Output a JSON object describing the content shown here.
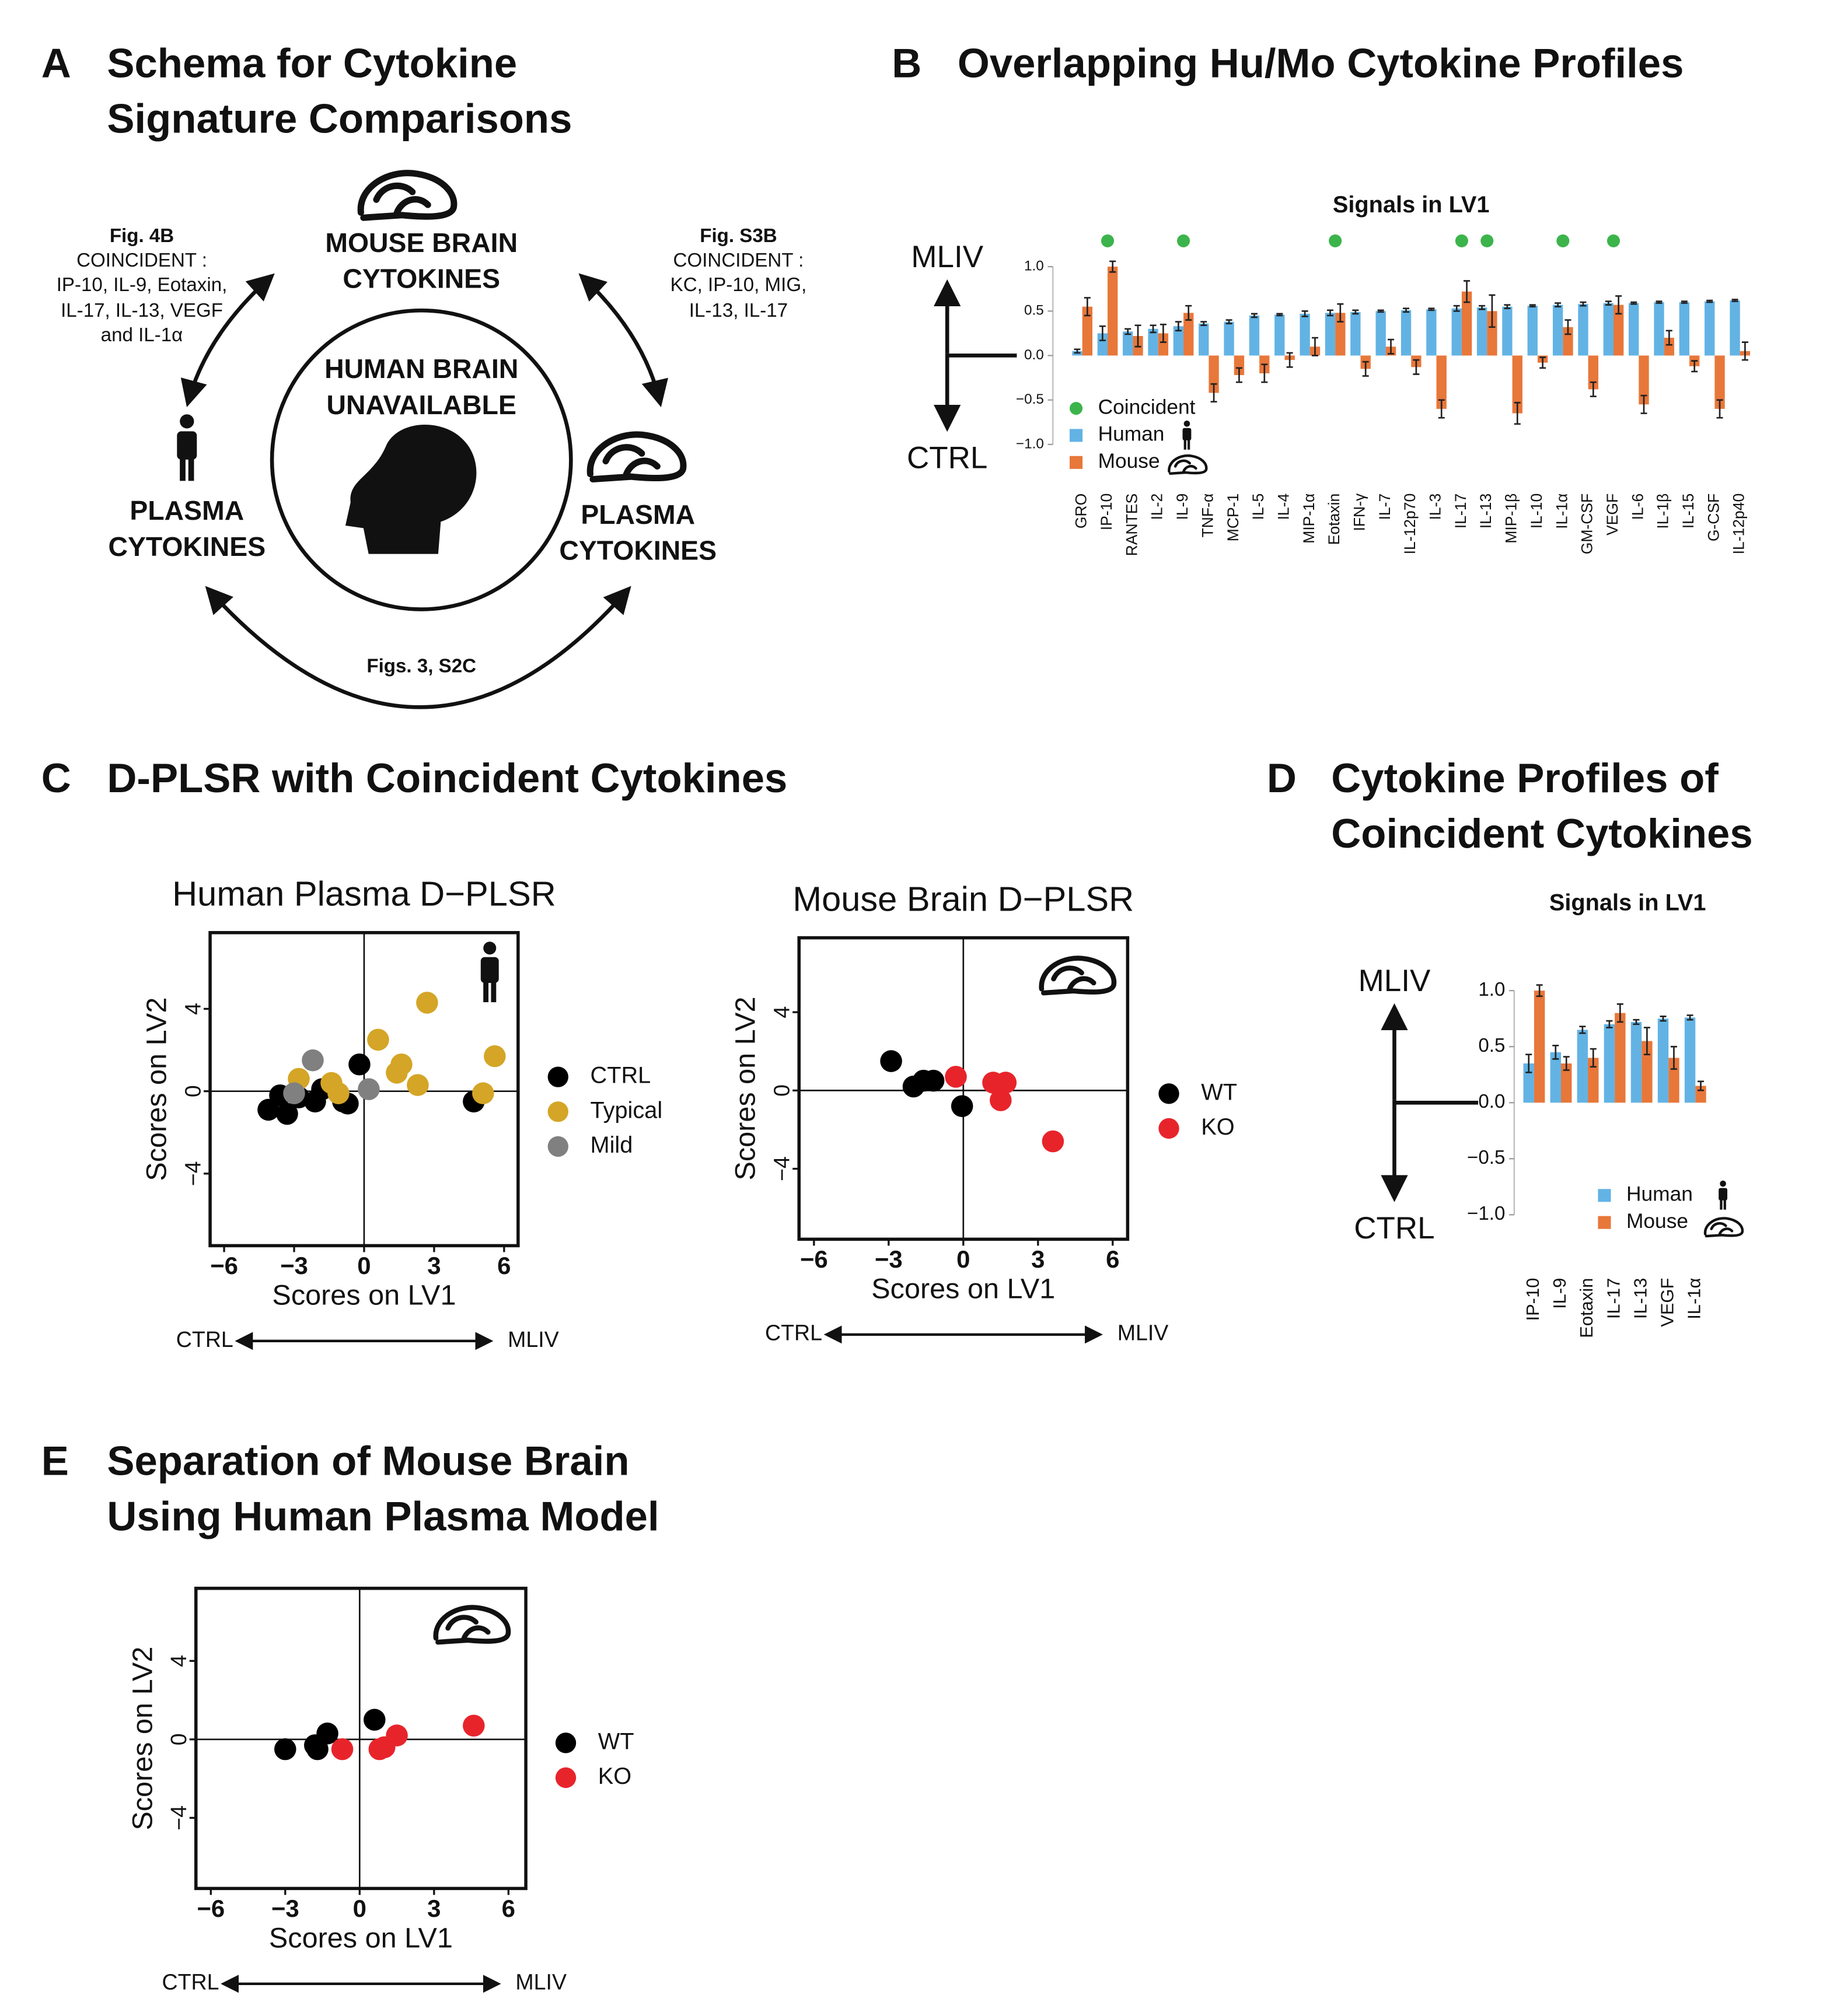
{
  "headings": [
    {
      "letter": "A",
      "lines": [
        "Schema for Cytokine",
        "Signature Comparisons"
      ]
    },
    {
      "letter": "B",
      "lines": [
        "Overlapping Hu/Mo Cytokine Profiles"
      ]
    },
    {
      "letter": "C",
      "lines": [
        "D-PLSR with Coincident Cytokines"
      ]
    },
    {
      "letter": "D",
      "lines": [
        "Cytokine Profiles of",
        "Coincident Cytokines"
      ]
    },
    {
      "letter": "E",
      "lines": [
        "Separation of Mouse Brain",
        "Using Human Plasma Model"
      ]
    }
  ],
  "schema": {
    "top": [
      "MOUSE BRAIN",
      "CYTOKINES"
    ],
    "center": [
      "HUMAN BRAIN",
      "UNAVAILABLE"
    ],
    "left": [
      "PLASMA",
      "CYTOKINES"
    ],
    "right": [
      "PLASMA",
      "CYTOKINES"
    ],
    "left_note": [
      "Fig. 4B",
      "COINCIDENT :",
      "IP-10, IL-9, Eotaxin,",
      "IL-17, IL-13, VEGF",
      "and IL-1α"
    ],
    "right_note": [
      "Fig. S3B",
      "COINCIDENT :",
      "KC, IP-10, MIG,",
      "IL-13, IL-17"
    ],
    "bottom_note": "Figs. 3, S2C"
  },
  "chart_data": [
    {
      "type": "bar",
      "subtitle": "Signals in LV1",
      "annotations": [
        "MLIV",
        "CTRL"
      ],
      "categories": [
        "GRO",
        "IP-10",
        "RANTES",
        "IL-2",
        "IL-9",
        "TNF-α",
        "MCP-1",
        "IL-5",
        "IL-4",
        "MIP-1α",
        "Eotaxin",
        "IFN-γ",
        "IL-7",
        "IL-12p70",
        "IL-3",
        "IL-17",
        "IL-13",
        "MIP-1β",
        "IL-10",
        "IL-1α",
        "GM-CSF",
        "VEGF",
        "IL-6",
        "IL-1β",
        "IL-15",
        "G-CSF",
        "IL-12p40"
      ],
      "coincident": {
        "name": "Coincident",
        "color": "#3cb44b",
        "categories": [
          "IP-10",
          "IL-9",
          "Eotaxin",
          "IL-17",
          "IL-13",
          "IL-1α",
          "VEGF"
        ]
      },
      "series": [
        {
          "name": "Human",
          "color": "#62b3e4",
          "values": [
            0.05,
            0.25,
            0.27,
            0.3,
            0.33,
            0.36,
            0.38,
            0.45,
            0.46,
            0.47,
            0.48,
            0.49,
            0.5,
            0.51,
            0.52,
            0.53,
            0.54,
            0.55,
            0.56,
            0.57,
            0.58,
            0.59,
            0.59,
            0.6,
            0.6,
            0.61,
            0.62
          ],
          "errors": [
            0.02,
            0.08,
            0.03,
            0.04,
            0.05,
            0.02,
            0.02,
            0.02,
            0.01,
            0.03,
            0.03,
            0.02,
            0.01,
            0.02,
            0.01,
            0.03,
            0.02,
            0.02,
            0.01,
            0.02,
            0.02,
            0.02,
            0.01,
            0.01,
            0.01,
            0.01,
            0.01
          ]
        },
        {
          "name": "Mouse",
          "color": "#e8773a",
          "values": [
            0.55,
            1.0,
            0.22,
            0.25,
            0.48,
            -0.42,
            -0.22,
            -0.2,
            -0.05,
            0.1,
            0.48,
            -0.15,
            0.1,
            -0.13,
            -0.6,
            0.72,
            0.5,
            -0.65,
            -0.08,
            0.32,
            -0.38,
            0.57,
            -0.55,
            0.2,
            -0.12,
            -0.6,
            0.05
          ],
          "errors": [
            0.1,
            0.06,
            0.12,
            0.1,
            0.08,
            0.1,
            0.08,
            0.1,
            0.08,
            0.1,
            0.1,
            0.08,
            0.08,
            0.08,
            0.1,
            0.12,
            0.18,
            0.12,
            0.06,
            0.08,
            0.08,
            0.1,
            0.1,
            0.08,
            0.06,
            0.1,
            0.1
          ]
        }
      ],
      "ylim": [
        -1,
        1
      ],
      "yticks": [
        {
          "value": 1,
          "label": "1.0"
        },
        {
          "value": 0.5,
          "label": "0.5"
        },
        {
          "value": 0,
          "label": "0.0"
        },
        {
          "value": -0.5,
          "label": "−0.5"
        },
        {
          "value": -1,
          "label": "−1.0"
        }
      ]
    },
    {
      "type": "bar",
      "subtitle": "Signals in LV1",
      "annotations": [
        "MLIV",
        "CTRL"
      ],
      "categories": [
        "IP-10",
        "IL-9",
        "Eotaxin",
        "IL-17",
        "IL-13",
        "VEGF",
        "IL-1α"
      ],
      "series": [
        {
          "name": "Human",
          "color": "#62b3e4",
          "values": [
            0.35,
            0.45,
            0.65,
            0.7,
            0.72,
            0.75,
            0.76
          ],
          "errors": [
            0.08,
            0.06,
            0.03,
            0.03,
            0.02,
            0.02,
            0.02
          ]
        },
        {
          "name": "Mouse",
          "color": "#e8773a",
          "values": [
            1.0,
            0.35,
            0.4,
            0.8,
            0.55,
            0.4,
            0.15
          ],
          "errors": [
            0.05,
            0.06,
            0.08,
            0.08,
            0.12,
            0.1,
            0.04
          ]
        }
      ],
      "ylim": [
        -1,
        1
      ],
      "yticks": [
        {
          "value": 1,
          "label": "1.0"
        },
        {
          "value": 0.5,
          "label": "0.5"
        },
        {
          "value": 0,
          "label": "0.0"
        },
        {
          "value": -0.5,
          "label": "−0.5"
        },
        {
          "value": -1,
          "label": "−1.0"
        }
      ]
    },
    {
      "type": "scatter",
      "title": "Human Plasma D−PLSR",
      "xlabel": "Scores on LV1",
      "ylabel": "Scores on LV2",
      "annotations": [
        "CTRL",
        "MLIV"
      ],
      "series": [
        {
          "name": "CTRL",
          "color": "#000000",
          "x": [
            -4.1,
            -3.3,
            -2.8,
            -2.1,
            -1.8,
            -0.9,
            -0.7,
            -0.2,
            4.7,
            -3.6
          ],
          "y": [
            -0.9,
            -1.1,
            -0.3,
            -0.5,
            0.1,
            -0.5,
            -0.6,
            1.3,
            -0.5,
            -0.2
          ]
        },
        {
          "name": "Typical",
          "color": "#d4a526",
          "x": [
            2.7,
            0.6,
            1.6,
            1.4,
            2.3,
            5.6,
            5.1,
            -2.8,
            -1.4,
            -1.1
          ],
          "y": [
            4.3,
            2.5,
            1.3,
            0.9,
            0.3,
            1.7,
            -0.1,
            0.6,
            0.4,
            -0.1
          ]
        },
        {
          "name": "Mild",
          "color": "#808080",
          "x": [
            -2.2,
            -3.0,
            0.2
          ],
          "y": [
            1.5,
            -0.1,
            0.1
          ]
        }
      ],
      "xlim": [
        -6.6,
        6.6
      ],
      "ylim": [
        -7.5,
        7.7
      ],
      "xticks": [
        {
          "value": -6,
          "label": "−6"
        },
        {
          "value": -3,
          "label": "−3"
        },
        0,
        3,
        6
      ],
      "yticks": [
        4,
        0,
        {
          "value": -4,
          "label": "−4"
        }
      ]
    },
    {
      "type": "scatter",
      "title": "Mouse Brain D−PLSR",
      "xlabel": "Scores on LV1",
      "ylabel": "Scores on LV2",
      "annotations": [
        "CTRL",
        "MLIV"
      ],
      "series": [
        {
          "name": "WT",
          "color": "#000000",
          "x": [
            -2.9,
            -2.0,
            -1.6,
            -1.2,
            -0.05
          ],
          "y": [
            1.5,
            0.2,
            0.5,
            0.5,
            -0.8
          ]
        },
        {
          "name": "KO",
          "color": "#e8242b",
          "x": [
            -0.3,
            1.2,
            1.7,
            1.5,
            3.6
          ],
          "y": [
            0.7,
            0.4,
            0.4,
            -0.5,
            -2.6
          ]
        }
      ],
      "xlim": [
        -6.6,
        6.6
      ],
      "ylim": [
        -7.6,
        7.8
      ],
      "xticks": [
        {
          "value": -6,
          "label": "−6"
        },
        {
          "value": -3,
          "label": "−3"
        },
        0,
        3,
        6
      ],
      "yticks": [
        4,
        0,
        {
          "value": -4,
          "label": "−4"
        }
      ]
    },
    {
      "type": "scatter",
      "xlabel": "Scores on LV1",
      "ylabel": "Scores on LV2",
      "annotations": [
        "CTRL",
        "MLIV"
      ],
      "series": [
        {
          "name": "WT",
          "color": "#000000",
          "x": [
            -3.0,
            -1.8,
            -1.3,
            0.6,
            -1.7
          ],
          "y": [
            -0.5,
            -0.3,
            0.3,
            1.0,
            -0.5
          ]
        },
        {
          "name": "KO",
          "color": "#e8242b",
          "x": [
            -0.7,
            0.8,
            1.0,
            1.5,
            4.6
          ],
          "y": [
            -0.5,
            -0.5,
            -0.4,
            0.2,
            0.7
          ]
        }
      ],
      "xlim": [
        -6.6,
        6.7
      ],
      "ylim": [
        -7.6,
        7.7
      ],
      "xticks": [
        {
          "value": -6,
          "label": "−6"
        },
        {
          "value": -3,
          "label": "−3"
        },
        0,
        3,
        6
      ],
      "yticks": [
        4,
        0,
        {
          "value": -4,
          "label": "−4"
        }
      ]
    }
  ]
}
